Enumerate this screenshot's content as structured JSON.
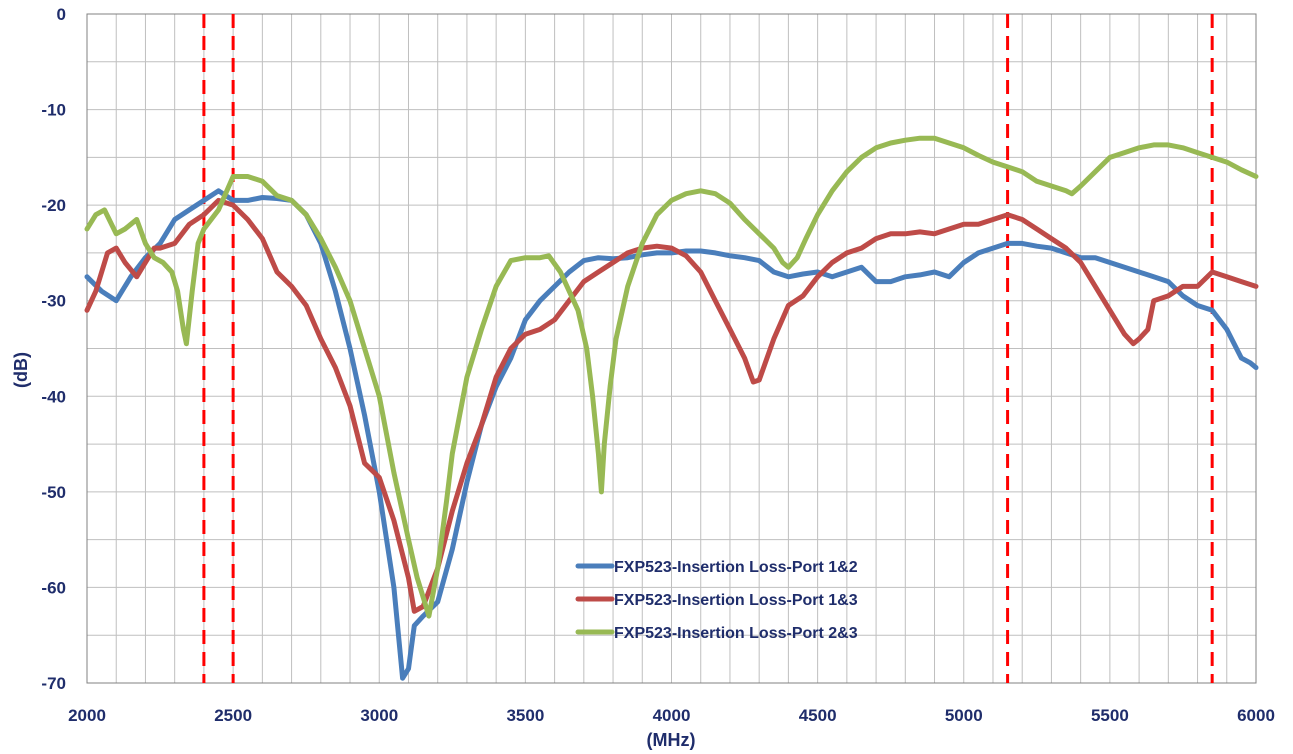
{
  "chart_data": {
    "type": "line",
    "title": "",
    "xlabel": "(MHz)",
    "ylabel": "(dB)",
    "xlim": [
      2000,
      6000
    ],
    "ylim": [
      -70,
      0
    ],
    "xticks": [
      2000,
      2500,
      3000,
      3500,
      4000,
      4500,
      5000,
      5500,
      6000
    ],
    "yticks": [
      0,
      -10,
      -20,
      -30,
      -40,
      -50,
      -60,
      -70
    ],
    "x_minor_step": 100,
    "y_minor_step": 5,
    "grid": true,
    "legend_position": "bottom-center",
    "reference_lines_x": [
      2400,
      2500,
      5150,
      5850
    ],
    "reference_line_color": "#ff0000",
    "series": [
      {
        "name": "FXP523-Insertion Loss-Port 1&2",
        "color": "#4a7ebb",
        "points": [
          [
            2000,
            -27.5
          ],
          [
            2050,
            -29
          ],
          [
            2100,
            -30
          ],
          [
            2150,
            -27.5
          ],
          [
            2200,
            -25.5
          ],
          [
            2250,
            -24
          ],
          [
            2300,
            -21.5
          ],
          [
            2350,
            -20.5
          ],
          [
            2400,
            -19.5
          ],
          [
            2450,
            -18.5
          ],
          [
            2500,
            -19.5
          ],
          [
            2550,
            -19.5
          ],
          [
            2600,
            -19.2
          ],
          [
            2650,
            -19.3
          ],
          [
            2700,
            -19.5
          ],
          [
            2750,
            -21
          ],
          [
            2800,
            -24
          ],
          [
            2850,
            -29
          ],
          [
            2900,
            -35
          ],
          [
            2950,
            -42
          ],
          [
            3000,
            -50
          ],
          [
            3050,
            -60
          ],
          [
            3080,
            -69.5
          ],
          [
            3100,
            -68.5
          ],
          [
            3120,
            -64
          ],
          [
            3150,
            -63
          ],
          [
            3200,
            -61.5
          ],
          [
            3250,
            -56
          ],
          [
            3300,
            -49
          ],
          [
            3350,
            -43
          ],
          [
            3400,
            -39
          ],
          [
            3450,
            -36
          ],
          [
            3500,
            -32
          ],
          [
            3550,
            -30
          ],
          [
            3600,
            -28.5
          ],
          [
            3650,
            -27
          ],
          [
            3700,
            -25.8
          ],
          [
            3750,
            -25.5
          ],
          [
            3800,
            -25.6
          ],
          [
            3850,
            -25.5
          ],
          [
            3900,
            -25.2
          ],
          [
            3950,
            -25
          ],
          [
            4000,
            -25
          ],
          [
            4050,
            -24.8
          ],
          [
            4100,
            -24.8
          ],
          [
            4150,
            -25
          ],
          [
            4200,
            -25.3
          ],
          [
            4250,
            -25.5
          ],
          [
            4300,
            -25.8
          ],
          [
            4350,
            -27
          ],
          [
            4400,
            -27.5
          ],
          [
            4450,
            -27.2
          ],
          [
            4500,
            -27
          ],
          [
            4550,
            -27.5
          ],
          [
            4600,
            -27
          ],
          [
            4650,
            -26.5
          ],
          [
            4700,
            -28
          ],
          [
            4750,
            -28
          ],
          [
            4800,
            -27.5
          ],
          [
            4850,
            -27.3
          ],
          [
            4900,
            -27
          ],
          [
            4950,
            -27.5
          ],
          [
            5000,
            -26
          ],
          [
            5050,
            -25
          ],
          [
            5100,
            -24.5
          ],
          [
            5150,
            -24
          ],
          [
            5200,
            -24
          ],
          [
            5250,
            -24.3
          ],
          [
            5300,
            -24.5
          ],
          [
            5350,
            -25
          ],
          [
            5400,
            -25.5
          ],
          [
            5450,
            -25.5
          ],
          [
            5500,
            -26
          ],
          [
            5550,
            -26.5
          ],
          [
            5600,
            -27
          ],
          [
            5650,
            -27.5
          ],
          [
            5700,
            -28
          ],
          [
            5750,
            -29.5
          ],
          [
            5800,
            -30.5
          ],
          [
            5850,
            -31
          ],
          [
            5900,
            -33
          ],
          [
            5950,
            -36
          ],
          [
            5980,
            -36.5
          ],
          [
            6000,
            -37
          ]
        ]
      },
      {
        "name": "FXP523-Insertion Loss-Port 1&3",
        "color": "#be4b48",
        "points": [
          [
            2000,
            -31
          ],
          [
            2030,
            -29
          ],
          [
            2070,
            -25
          ],
          [
            2100,
            -24.5
          ],
          [
            2130,
            -26
          ],
          [
            2170,
            -27.5
          ],
          [
            2200,
            -26
          ],
          [
            2230,
            -24.5
          ],
          [
            2250,
            -24.5
          ],
          [
            2300,
            -24
          ],
          [
            2350,
            -22
          ],
          [
            2400,
            -21
          ],
          [
            2450,
            -19.5
          ],
          [
            2500,
            -20
          ],
          [
            2550,
            -21.5
          ],
          [
            2600,
            -23.5
          ],
          [
            2650,
            -27
          ],
          [
            2700,
            -28.5
          ],
          [
            2750,
            -30.5
          ],
          [
            2800,
            -34
          ],
          [
            2850,
            -37
          ],
          [
            2900,
            -41
          ],
          [
            2950,
            -47
          ],
          [
            3000,
            -48.5
          ],
          [
            3050,
            -53
          ],
          [
            3100,
            -59
          ],
          [
            3120,
            -62.5
          ],
          [
            3150,
            -62
          ],
          [
            3200,
            -58
          ],
          [
            3250,
            -52
          ],
          [
            3300,
            -47
          ],
          [
            3350,
            -43
          ],
          [
            3400,
            -38
          ],
          [
            3450,
            -35
          ],
          [
            3500,
            -33.5
          ],
          [
            3550,
            -33
          ],
          [
            3600,
            -32
          ],
          [
            3650,
            -30
          ],
          [
            3700,
            -28
          ],
          [
            3750,
            -27
          ],
          [
            3800,
            -26
          ],
          [
            3850,
            -25
          ],
          [
            3900,
            -24.5
          ],
          [
            3950,
            -24.3
          ],
          [
            4000,
            -24.5
          ],
          [
            4050,
            -25.3
          ],
          [
            4100,
            -27
          ],
          [
            4150,
            -30
          ],
          [
            4200,
            -33
          ],
          [
            4250,
            -36
          ],
          [
            4280,
            -38.5
          ],
          [
            4300,
            -38.3
          ],
          [
            4350,
            -34
          ],
          [
            4400,
            -30.5
          ],
          [
            4450,
            -29.5
          ],
          [
            4500,
            -27.5
          ],
          [
            4550,
            -26
          ],
          [
            4600,
            -25
          ],
          [
            4650,
            -24.5
          ],
          [
            4700,
            -23.5
          ],
          [
            4750,
            -23
          ],
          [
            4800,
            -23
          ],
          [
            4850,
            -22.8
          ],
          [
            4900,
            -23
          ],
          [
            4950,
            -22.5
          ],
          [
            5000,
            -22
          ],
          [
            5050,
            -22
          ],
          [
            5100,
            -21.5
          ],
          [
            5150,
            -21
          ],
          [
            5200,
            -21.5
          ],
          [
            5250,
            -22.5
          ],
          [
            5300,
            -23.5
          ],
          [
            5350,
            -24.5
          ],
          [
            5400,
            -26
          ],
          [
            5450,
            -28.5
          ],
          [
            5480,
            -30
          ],
          [
            5500,
            -31
          ],
          [
            5550,
            -33.5
          ],
          [
            5580,
            -34.5
          ],
          [
            5600,
            -34
          ],
          [
            5630,
            -33
          ],
          [
            5650,
            -30
          ],
          [
            5700,
            -29.5
          ],
          [
            5750,
            -28.5
          ],
          [
            5800,
            -28.5
          ],
          [
            5850,
            -27
          ],
          [
            5900,
            -27.5
          ],
          [
            5950,
            -28
          ],
          [
            6000,
            -28.5
          ]
        ]
      },
      {
        "name": "FXP523-Insertion Loss-Port 2&3",
        "color": "#98b954",
        "points": [
          [
            2000,
            -22.5
          ],
          [
            2030,
            -21
          ],
          [
            2060,
            -20.5
          ],
          [
            2100,
            -23
          ],
          [
            2130,
            -22.5
          ],
          [
            2170,
            -21.5
          ],
          [
            2200,
            -24
          ],
          [
            2230,
            -25.5
          ],
          [
            2260,
            -26
          ],
          [
            2290,
            -27
          ],
          [
            2310,
            -29
          ],
          [
            2330,
            -33
          ],
          [
            2340,
            -34.5
          ],
          [
            2360,
            -29
          ],
          [
            2380,
            -24
          ],
          [
            2400,
            -22.5
          ],
          [
            2450,
            -20.5
          ],
          [
            2500,
            -17
          ],
          [
            2550,
            -17
          ],
          [
            2600,
            -17.5
          ],
          [
            2650,
            -19
          ],
          [
            2700,
            -19.5
          ],
          [
            2750,
            -21
          ],
          [
            2800,
            -23.5
          ],
          [
            2850,
            -26.5
          ],
          [
            2900,
            -30
          ],
          [
            2950,
            -35
          ],
          [
            3000,
            -40
          ],
          [
            3050,
            -48
          ],
          [
            3100,
            -55
          ],
          [
            3130,
            -59
          ],
          [
            3150,
            -61
          ],
          [
            3170,
            -63
          ],
          [
            3200,
            -58
          ],
          [
            3230,
            -51
          ],
          [
            3250,
            -46
          ],
          [
            3300,
            -38
          ],
          [
            3350,
            -33
          ],
          [
            3400,
            -28.5
          ],
          [
            3450,
            -25.8
          ],
          [
            3500,
            -25.5
          ],
          [
            3550,
            -25.5
          ],
          [
            3580,
            -25.3
          ],
          [
            3620,
            -27
          ],
          [
            3650,
            -29
          ],
          [
            3680,
            -31
          ],
          [
            3710,
            -35
          ],
          [
            3730,
            -40
          ],
          [
            3750,
            -46
          ],
          [
            3760,
            -50
          ],
          [
            3770,
            -45
          ],
          [
            3790,
            -39
          ],
          [
            3810,
            -34
          ],
          [
            3850,
            -28.5
          ],
          [
            3900,
            -24
          ],
          [
            3950,
            -21
          ],
          [
            4000,
            -19.5
          ],
          [
            4050,
            -18.8
          ],
          [
            4100,
            -18.5
          ],
          [
            4150,
            -18.8
          ],
          [
            4200,
            -19.8
          ],
          [
            4250,
            -21.5
          ],
          [
            4300,
            -23
          ],
          [
            4350,
            -24.5
          ],
          [
            4380,
            -26
          ],
          [
            4400,
            -26.5
          ],
          [
            4430,
            -25.5
          ],
          [
            4460,
            -23.5
          ],
          [
            4500,
            -21
          ],
          [
            4550,
            -18.5
          ],
          [
            4600,
            -16.5
          ],
          [
            4650,
            -15
          ],
          [
            4700,
            -14
          ],
          [
            4750,
            -13.5
          ],
          [
            4800,
            -13.2
          ],
          [
            4850,
            -13
          ],
          [
            4900,
            -13
          ],
          [
            4950,
            -13.5
          ],
          [
            5000,
            -14
          ],
          [
            5050,
            -14.8
          ],
          [
            5100,
            -15.5
          ],
          [
            5150,
            -16
          ],
          [
            5200,
            -16.5
          ],
          [
            5250,
            -17.5
          ],
          [
            5300,
            -18
          ],
          [
            5350,
            -18.5
          ],
          [
            5370,
            -18.8
          ],
          [
            5400,
            -18
          ],
          [
            5450,
            -16.5
          ],
          [
            5500,
            -15
          ],
          [
            5550,
            -14.5
          ],
          [
            5600,
            -14
          ],
          [
            5650,
            -13.7
          ],
          [
            5700,
            -13.7
          ],
          [
            5750,
            -14
          ],
          [
            5800,
            -14.5
          ],
          [
            5850,
            -15
          ],
          [
            5900,
            -15.5
          ],
          [
            5950,
            -16.3
          ],
          [
            6000,
            -17
          ]
        ]
      }
    ]
  }
}
